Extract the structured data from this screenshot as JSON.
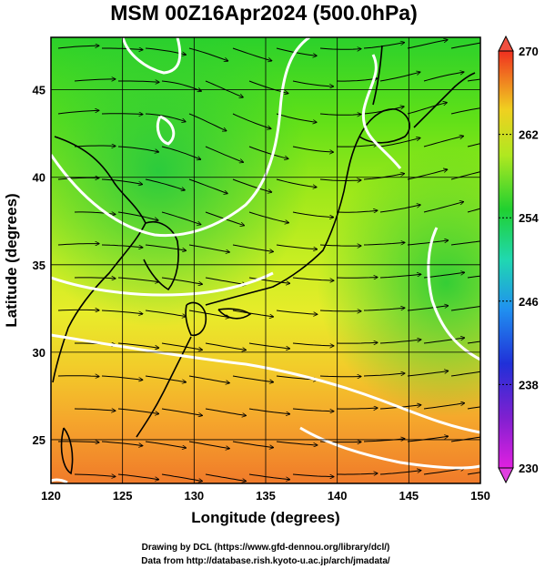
{
  "title": "MSM 00Z16Apr2024 (500.0hPa)",
  "x_axis": {
    "label": "Longitude (degrees)",
    "range": [
      120,
      150
    ],
    "ticks": [
      "120",
      "125",
      "130",
      "135",
      "140",
      "145",
      "150"
    ]
  },
  "y_axis": {
    "label": "Latitude  (degrees)",
    "range": [
      22.5,
      48
    ],
    "ticks": [
      "25",
      "30",
      "35",
      "40",
      "45"
    ]
  },
  "colorbar": {
    "range": [
      230,
      270
    ],
    "ticks": [
      "230",
      "238",
      "246",
      "254",
      "262",
      "270"
    ]
  },
  "credits": {
    "line1": "Drawing by DCL (https://www.gfd-dennou.org/library/dcl/)",
    "line2": "Data from http://database.rish.kyoto-u.ac.jp/arch/jmadata/"
  },
  "colors": {
    "contour": "#ffffff",
    "streamline": "#000000",
    "grid": "#000000"
  }
}
